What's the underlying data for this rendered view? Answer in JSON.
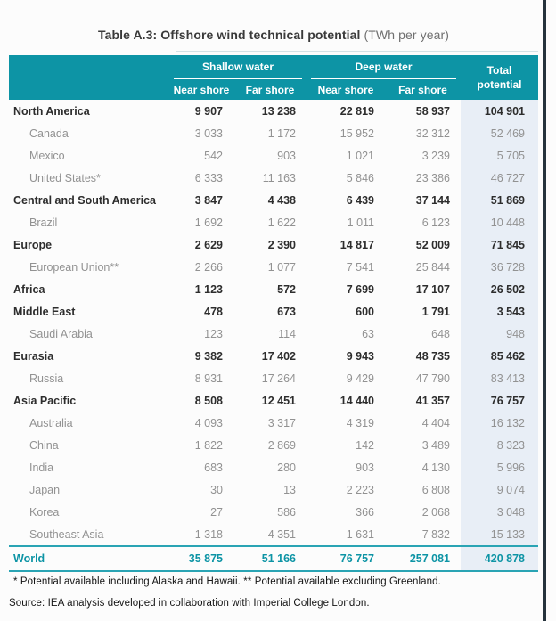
{
  "title": {
    "main": "Table A.3: Offshore wind technical potential",
    "unit": "(TWh per year)"
  },
  "table": {
    "groups": [
      {
        "label": "Shallow water",
        "cols": [
          "Near shore",
          "Far shore"
        ]
      },
      {
        "label": "Deep water",
        "cols": [
          "Near shore",
          "Far shore"
        ]
      }
    ],
    "total_header": {
      "line1": "Total",
      "line2": "potential"
    },
    "rows": [
      {
        "region": "North America",
        "level": 0,
        "values": [
          "9 907",
          "13 238",
          "22 819",
          "58 937",
          "104 901"
        ]
      },
      {
        "region": "Canada",
        "level": 1,
        "values": [
          "3 033",
          "1 172",
          "15 952",
          "32 312",
          "52 469"
        ]
      },
      {
        "region": "Mexico",
        "level": 1,
        "values": [
          "542",
          "903",
          "1 021",
          "3 239",
          "5 705"
        ]
      },
      {
        "region": "United States*",
        "level": 1,
        "values": [
          "6 333",
          "11 163",
          "5 846",
          "23 386",
          "46 727"
        ]
      },
      {
        "region": "Central and South America",
        "level": 0,
        "values": [
          "3 847",
          "4 438",
          "6 439",
          "37 144",
          "51 869"
        ]
      },
      {
        "region": "Brazil",
        "level": 1,
        "values": [
          "1 692",
          "1 622",
          "1 011",
          "6 123",
          "10 448"
        ]
      },
      {
        "region": "Europe",
        "level": 0,
        "values": [
          "2 629",
          "2 390",
          "14 817",
          "52 009",
          "71 845"
        ]
      },
      {
        "region": "European Union**",
        "level": 1,
        "values": [
          "2 266",
          "1 077",
          "7 541",
          "25 844",
          "36 728"
        ]
      },
      {
        "region": "Africa",
        "level": 0,
        "values": [
          "1 123",
          "572",
          "7 699",
          "17 107",
          "26 502"
        ]
      },
      {
        "region": "Middle East",
        "level": 0,
        "values": [
          "478",
          "673",
          "600",
          "1 791",
          "3 543"
        ]
      },
      {
        "region": "Saudi Arabia",
        "level": 1,
        "values": [
          "123",
          "114",
          "63",
          "648",
          "948"
        ]
      },
      {
        "region": "Eurasia",
        "level": 0,
        "values": [
          "9 382",
          "17 402",
          "9 943",
          "48 735",
          "85 462"
        ]
      },
      {
        "region": "Russia",
        "level": 1,
        "values": [
          "8 931",
          "17 264",
          "9 429",
          "47 790",
          "83 413"
        ]
      },
      {
        "region": "Asia Pacific",
        "level": 0,
        "values": [
          "8 508",
          "12 451",
          "14 440",
          "41 357",
          "76 757"
        ]
      },
      {
        "region": "Australia",
        "level": 1,
        "values": [
          "4 093",
          "3 317",
          "4 319",
          "4 404",
          "16 132"
        ]
      },
      {
        "region": "China",
        "level": 1,
        "values": [
          "1 822",
          "2 869",
          "142",
          "3 489",
          "8 323"
        ]
      },
      {
        "region": "India",
        "level": 1,
        "values": [
          "683",
          "280",
          "903",
          "4 130",
          "5 996"
        ]
      },
      {
        "region": "Japan",
        "level": 1,
        "values": [
          "30",
          "13",
          "2 223",
          "6 808",
          "9 074"
        ]
      },
      {
        "region": "Korea",
        "level": 1,
        "values": [
          "27",
          "586",
          "366",
          "2 068",
          "3 048"
        ]
      },
      {
        "region": "Southeast Asia",
        "level": 1,
        "values": [
          "1 318",
          "4 351",
          "1 631",
          "7 832",
          "15 133"
        ]
      }
    ],
    "world": {
      "region": "World",
      "values": [
        "35 875",
        "51 166",
        "76 757",
        "257 081",
        "420 878"
      ]
    }
  },
  "footnotes": {
    "note": "* Potential available including Alaska and Hawaii. ** Potential available excluding Greenland.",
    "source": "Source: IEA analysis developed in collaboration with Imperial College London."
  },
  "colors": {
    "header_teal": "#0d94a5",
    "total_column_bg": "#e8eef6",
    "world_text": "#0d94a5",
    "main_row_text": "#2d2d2d",
    "sub_row_text": "#929292"
  }
}
